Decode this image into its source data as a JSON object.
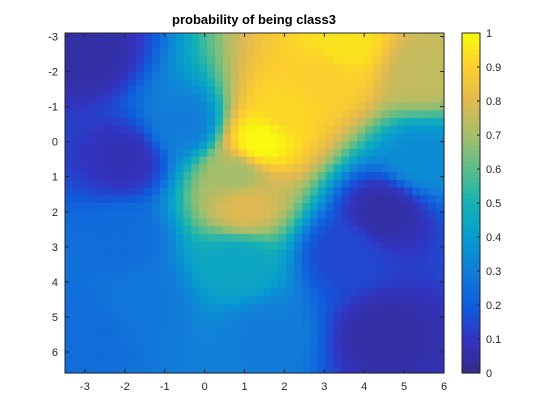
{
  "chart_data": {
    "type": "heatmap",
    "title": "probability of being class3",
    "xlabel": "",
    "ylabel": "",
    "xlim": [
      -3.5,
      6.0
    ],
    "ylim_top_to_bottom": [
      -3.1,
      6.6
    ],
    "y_axis_reversed": true,
    "xticks": [
      -3,
      -2,
      -1,
      0,
      1,
      2,
      3,
      4,
      5,
      6
    ],
    "yticks": [
      -3,
      -2,
      -1,
      0,
      1,
      2,
      3,
      4,
      5,
      6
    ],
    "colorbar": {
      "colormap": "parula",
      "limits": [
        0,
        1
      ],
      "ticks": [
        0,
        0.1,
        0.2,
        0.3,
        0.4,
        0.5,
        0.6,
        0.7,
        0.8,
        0.9,
        1
      ],
      "tick_labels": [
        "0",
        "0.1",
        "0.2",
        "0.3",
        "0.4",
        "0.5",
        "0.6",
        "0.7",
        "0.8",
        "0.9",
        "1"
      ],
      "location": "right"
    },
    "grid": false,
    "regions": [
      {
        "x": -3.0,
        "y": -2.5,
        "value": 0.05
      },
      {
        "x": -2.0,
        "y": 0.5,
        "value": 0.08
      },
      {
        "x": -3.0,
        "y": 5.5,
        "value": 0.25
      },
      {
        "x": -1.5,
        "y": 4.5,
        "value": 0.28
      },
      {
        "x": -2.0,
        "y": 2.8,
        "value": 0.25
      },
      {
        "x": 4.5,
        "y": 2.0,
        "value": 0.05
      },
      {
        "x": 4.5,
        "y": 5.5,
        "value": 0.05
      },
      {
        "x": 3.5,
        "y": 3.2,
        "value": 0.15
      },
      {
        "x": 1.4,
        "y": 0.0,
        "value": 1.0
      },
      {
        "x": 2.0,
        "y": -0.9,
        "value": 0.92
      },
      {
        "x": 3.0,
        "y": -1.8,
        "value": 0.9
      },
      {
        "x": 3.5,
        "y": -2.8,
        "value": 0.95
      },
      {
        "x": 1.0,
        "y": 1.8,
        "value": 0.8
      },
      {
        "x": 0.8,
        "y": 1.0,
        "value": 0.7
      },
      {
        "x": -0.5,
        "y": -0.5,
        "value": 0.3
      },
      {
        "x": 5.5,
        "y": -2.0,
        "value": 0.75
      },
      {
        "x": 5.5,
        "y": 0.5,
        "value": 0.35
      },
      {
        "x": 0.8,
        "y": 3.5,
        "value": 0.45
      },
      {
        "x": 1.5,
        "y": 5.5,
        "value": 0.3
      }
    ]
  }
}
